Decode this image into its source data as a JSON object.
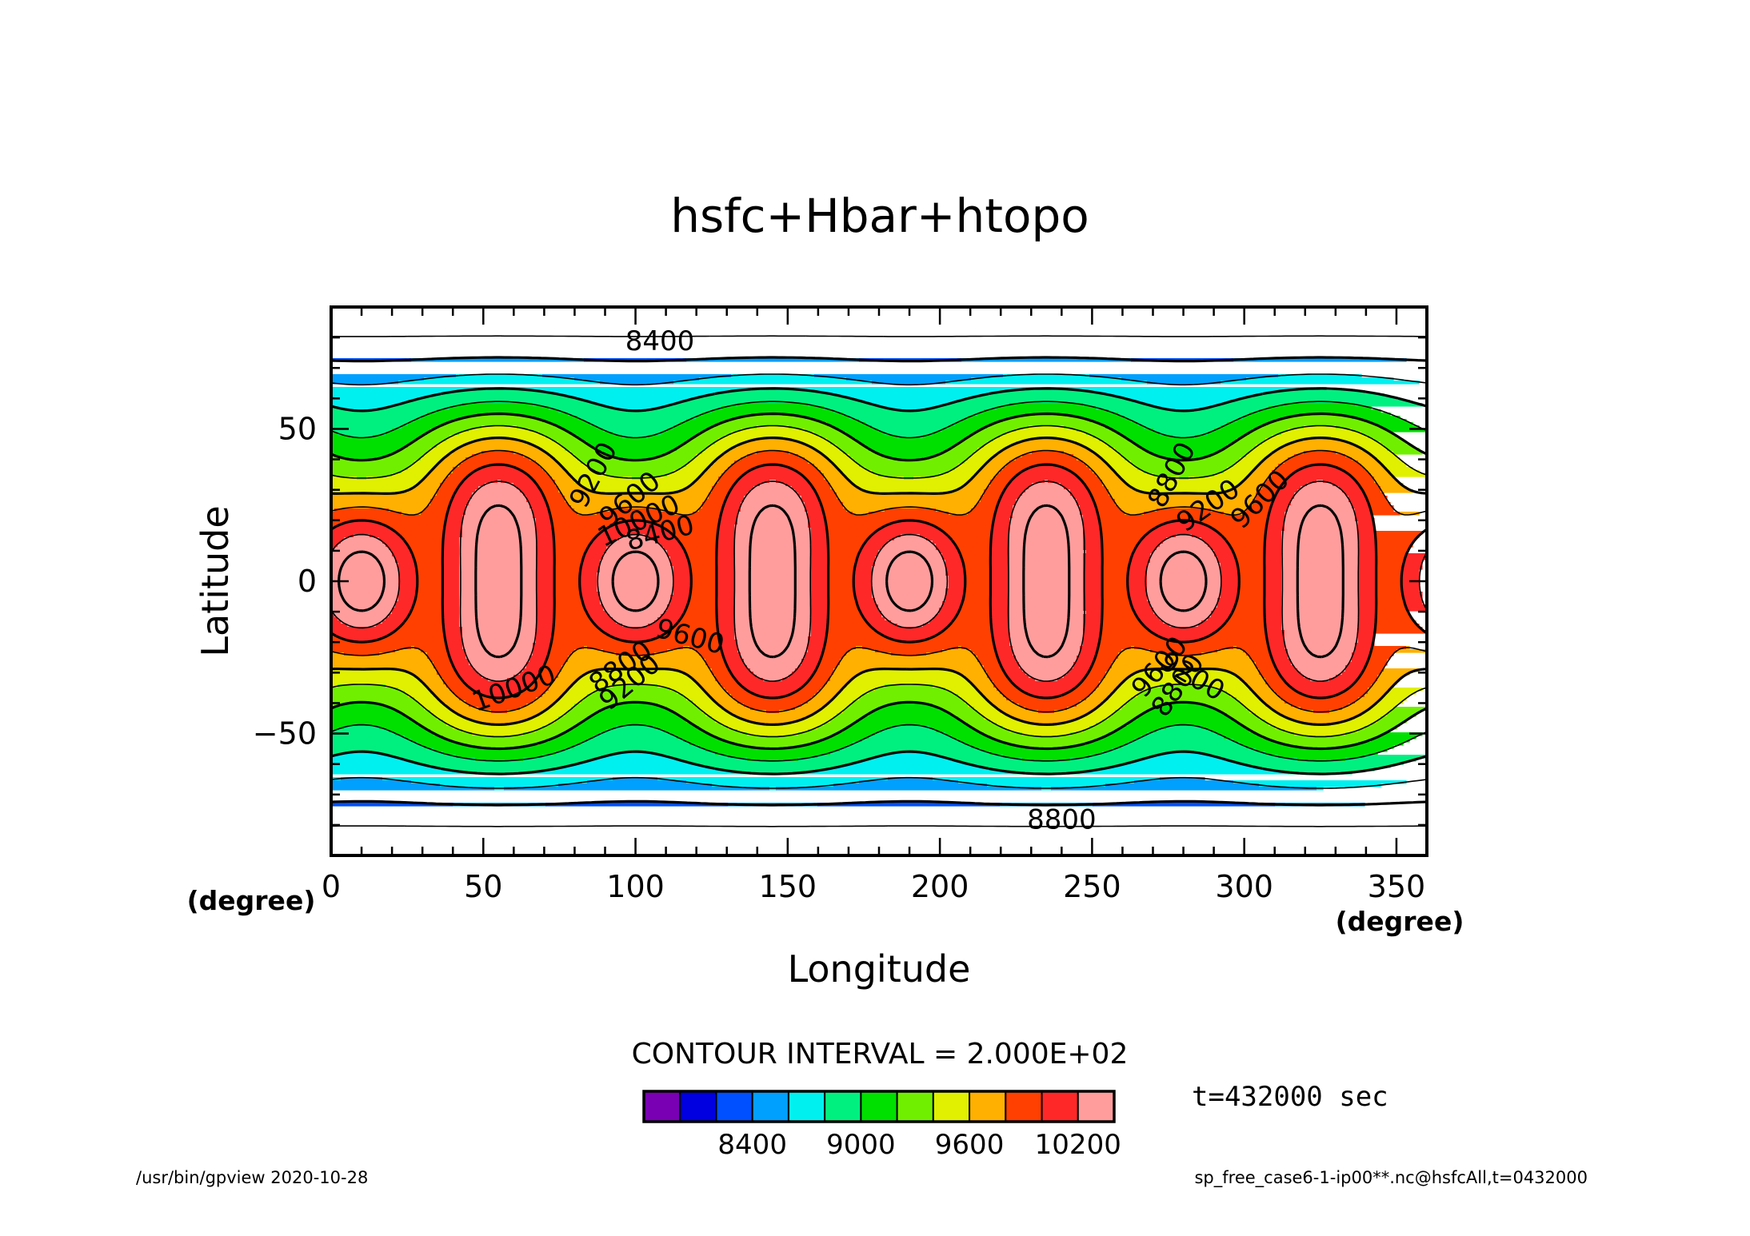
{
  "chart_data": {
    "type": "contour",
    "title": "hsfc+Hbar+htopo",
    "xlabel": "Longitude",
    "ylabel": "Latitude",
    "x_unit": "(degree)",
    "y_unit": "(degree)",
    "xlim": [
      0,
      360
    ],
    "ylim": [
      -90,
      90
    ],
    "x_ticks": [
      "0",
      "50",
      "100",
      "150",
      "200",
      "250",
      "300",
      "350"
    ],
    "y_ticks": [
      "50",
      "0",
      "−50"
    ],
    "x_tick_values": [
      0,
      50,
      100,
      150,
      200,
      250,
      300,
      350
    ],
    "y_tick_values": [
      50,
      0,
      -50
    ],
    "contour_interval_text": "CONTOUR INTERVAL = 2.000E+02",
    "contour_interval": 200,
    "contour_levels": [
      8000,
      8200,
      8400,
      8600,
      8800,
      9000,
      9200,
      9400,
      9600,
      9800,
      10000,
      10200,
      10400
    ],
    "contour_labels": [
      "8400",
      "8800",
      "9200",
      "9600",
      "10000",
      "8400",
      "8800",
      "9200",
      "9600",
      "10000",
      "8800",
      "9200",
      "9600",
      "9600",
      "9200",
      "8800"
    ],
    "wave_number": 4,
    "colorbar": {
      "colors": [
        "#7a00b4",
        "#0000e0",
        "#0050ff",
        "#00a0ff",
        "#00f0f0",
        "#00f080",
        "#00e000",
        "#70f000",
        "#e0f000",
        "#ffb000",
        "#ff4000",
        "#ff2828",
        "#ff9d9d"
      ],
      "tick_labels": [
        "8400",
        "9000",
        "9600",
        "10200"
      ],
      "tick_values": [
        8400,
        9000,
        9600,
        10200
      ]
    },
    "grid": false,
    "legend": "colorbar-bottom"
  },
  "annotations": {
    "time": "t=432000 sec",
    "program": "/usr/bin/gpview   2020-10-28",
    "source": "sp_free_case6-1-ip00**.nc@hsfcAll,t=0432000"
  }
}
